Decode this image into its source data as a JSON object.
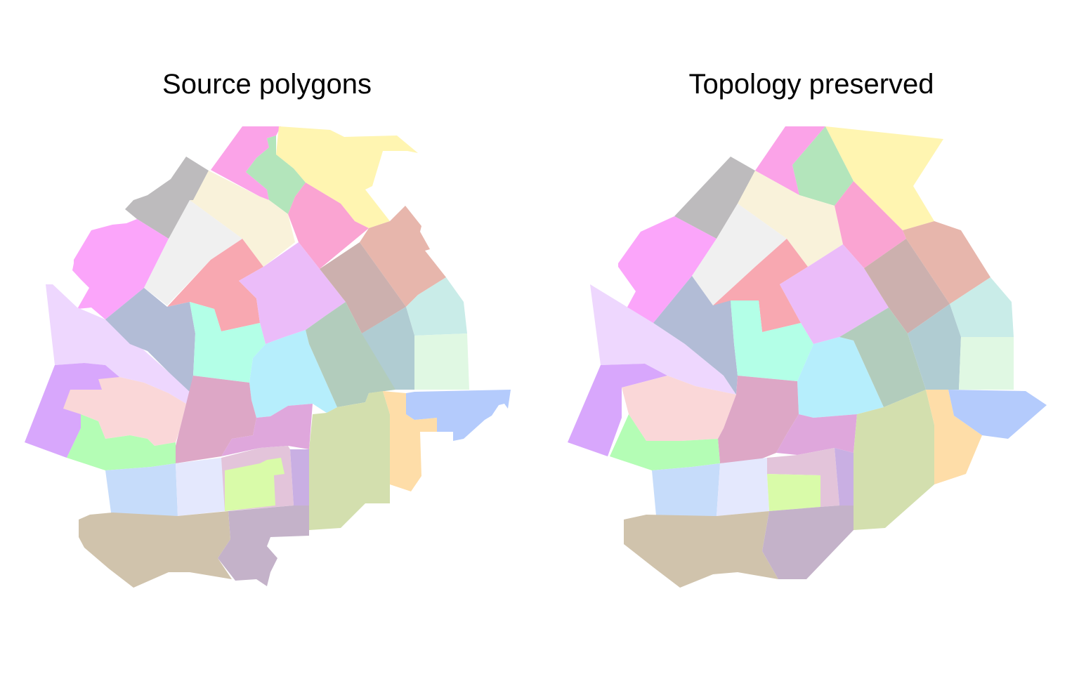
{
  "panels": [
    {
      "title": "Source polygons",
      "regions": [
        {
          "name": "magenta-top",
          "color": "#FBA3E8"
        },
        {
          "name": "yellow-north",
          "color": "#FFF5B1"
        },
        {
          "name": "green-small",
          "color": "#B3E5BB"
        },
        {
          "name": "gray",
          "color": "#BDBBBD"
        },
        {
          "name": "cream",
          "color": "#F9F2DA"
        },
        {
          "name": "pink-north",
          "color": "#FAA4D2"
        },
        {
          "name": "salmon-east",
          "color": "#E7B6AC"
        },
        {
          "name": "violet-west",
          "color": "#FBA5FA"
        },
        {
          "name": "white-gray",
          "color": "#F0F0F0"
        },
        {
          "name": "coral",
          "color": "#F8A8B1"
        },
        {
          "name": "lavender",
          "color": "#EBBCF9"
        },
        {
          "name": "taupe",
          "color": "#CCB0AE"
        },
        {
          "name": "aqua-east",
          "color": "#C9ECE8"
        },
        {
          "name": "lilac-west",
          "color": "#EED7FE"
        },
        {
          "name": "slate",
          "color": "#B2BCD6"
        },
        {
          "name": "mint",
          "color": "#B3FFE7"
        },
        {
          "name": "sky",
          "color": "#B6EEFC"
        },
        {
          "name": "sage",
          "color": "#B2CCBC"
        },
        {
          "name": "steel",
          "color": "#B0CCD2"
        },
        {
          "name": "pale-green",
          "color": "#E0F8E3"
        },
        {
          "name": "purple-sw",
          "color": "#D8A7FC"
        },
        {
          "name": "blush",
          "color": "#FAD7D8"
        },
        {
          "name": "mauve",
          "color": "#DDA7C6"
        },
        {
          "name": "light-green",
          "color": "#B4FDB5"
        },
        {
          "name": "orchid",
          "color": "#DFA7DC"
        },
        {
          "name": "olive",
          "color": "#D3DFAE"
        },
        {
          "name": "peach",
          "color": "#FEDDA8"
        },
        {
          "name": "periwinkle",
          "color": "#B4CBFC"
        },
        {
          "name": "powder",
          "color": "#C6DCFA"
        },
        {
          "name": "ghost",
          "color": "#E4E8FD"
        },
        {
          "name": "pink-gray",
          "color": "#E3C4DA"
        },
        {
          "name": "lime",
          "color": "#D9FBA9"
        },
        {
          "name": "violet-gray",
          "color": "#C9AFE3"
        },
        {
          "name": "tan",
          "color": "#D0C3AC"
        },
        {
          "name": "dusky",
          "color": "#C4B2C9"
        }
      ]
    },
    {
      "title": "Topology preserved",
      "regions": [
        {
          "name": "magenta-top",
          "color": "#FBA3E8"
        },
        {
          "name": "yellow-north",
          "color": "#FFF5B1"
        },
        {
          "name": "green-small",
          "color": "#B3E5BB"
        },
        {
          "name": "gray",
          "color": "#BDBBBD"
        },
        {
          "name": "cream",
          "color": "#F9F2DA"
        },
        {
          "name": "pink-north",
          "color": "#FAA4D2"
        },
        {
          "name": "salmon-east",
          "color": "#E7B6AC"
        },
        {
          "name": "violet-west",
          "color": "#FBA5FA"
        },
        {
          "name": "white-gray",
          "color": "#F0F0F0"
        },
        {
          "name": "coral",
          "color": "#F8A8B1"
        },
        {
          "name": "lavender",
          "color": "#EBBCF9"
        },
        {
          "name": "taupe",
          "color": "#CCB0AE"
        },
        {
          "name": "aqua-east",
          "color": "#C9ECE8"
        },
        {
          "name": "lilac-west",
          "color": "#EED7FE"
        },
        {
          "name": "slate",
          "color": "#B2BCD6"
        },
        {
          "name": "mint",
          "color": "#B3FFE7"
        },
        {
          "name": "sky",
          "color": "#B6EEFC"
        },
        {
          "name": "sage",
          "color": "#B2CCBC"
        },
        {
          "name": "steel",
          "color": "#B0CCD2"
        },
        {
          "name": "pale-green",
          "color": "#E0F8E3"
        },
        {
          "name": "purple-sw",
          "color": "#D8A7FC"
        },
        {
          "name": "blush",
          "color": "#FAD7D8"
        },
        {
          "name": "mauve",
          "color": "#DDA7C6"
        },
        {
          "name": "light-green",
          "color": "#B4FDB5"
        },
        {
          "name": "orchid",
          "color": "#DFA7DC"
        },
        {
          "name": "olive",
          "color": "#D3DFAE"
        },
        {
          "name": "peach",
          "color": "#FEDDA8"
        },
        {
          "name": "periwinkle",
          "color": "#B4CBFC"
        },
        {
          "name": "powder",
          "color": "#C6DCFA"
        },
        {
          "name": "ghost",
          "color": "#E4E8FD"
        },
        {
          "name": "pink-gray",
          "color": "#E3C4DA"
        },
        {
          "name": "lime",
          "color": "#D9FBA9"
        },
        {
          "name": "violet-gray",
          "color": "#C9AFE3"
        },
        {
          "name": "tan",
          "color": "#D0C3AC"
        },
        {
          "name": "dusky",
          "color": "#C4B2C9"
        }
      ]
    }
  ]
}
